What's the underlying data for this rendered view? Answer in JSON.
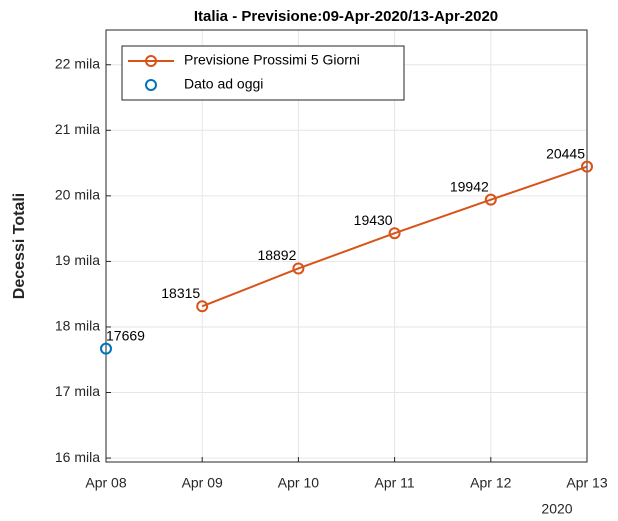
{
  "chart_data": {
    "type": "line",
    "title": "Italia - Previsione:09-Apr-2020/13-Apr-2020",
    "y_label": "Decessi Totali",
    "x_annotation": "2020",
    "categories": [
      "Apr 08",
      "Apr 09",
      "Apr 10",
      "Apr 11",
      "Apr 12",
      "Apr 13"
    ],
    "series": [
      {
        "name": "Previsione Prossimi 5 Giorni",
        "color": "#d95319",
        "line": true,
        "values": [
          null,
          18315,
          18892,
          19430,
          19942,
          20445
        ]
      },
      {
        "name": "Dato ad oggi",
        "color": "#0072bd",
        "line": false,
        "values": [
          17669,
          null,
          null,
          null,
          null,
          null
        ]
      }
    ],
    "ylim": [
      15940,
      22530
    ],
    "yticks": [
      {
        "value": 16000,
        "label": "16 mila"
      },
      {
        "value": 17000,
        "label": "17 mila"
      },
      {
        "value": 18000,
        "label": "18 mila"
      },
      {
        "value": 19000,
        "label": "19 mila"
      },
      {
        "value": 20000,
        "label": "20 mila"
      },
      {
        "value": 21000,
        "label": "21 mila"
      },
      {
        "value": 22000,
        "label": "22 mila"
      }
    ],
    "grid": true,
    "legend": "top-left"
  }
}
